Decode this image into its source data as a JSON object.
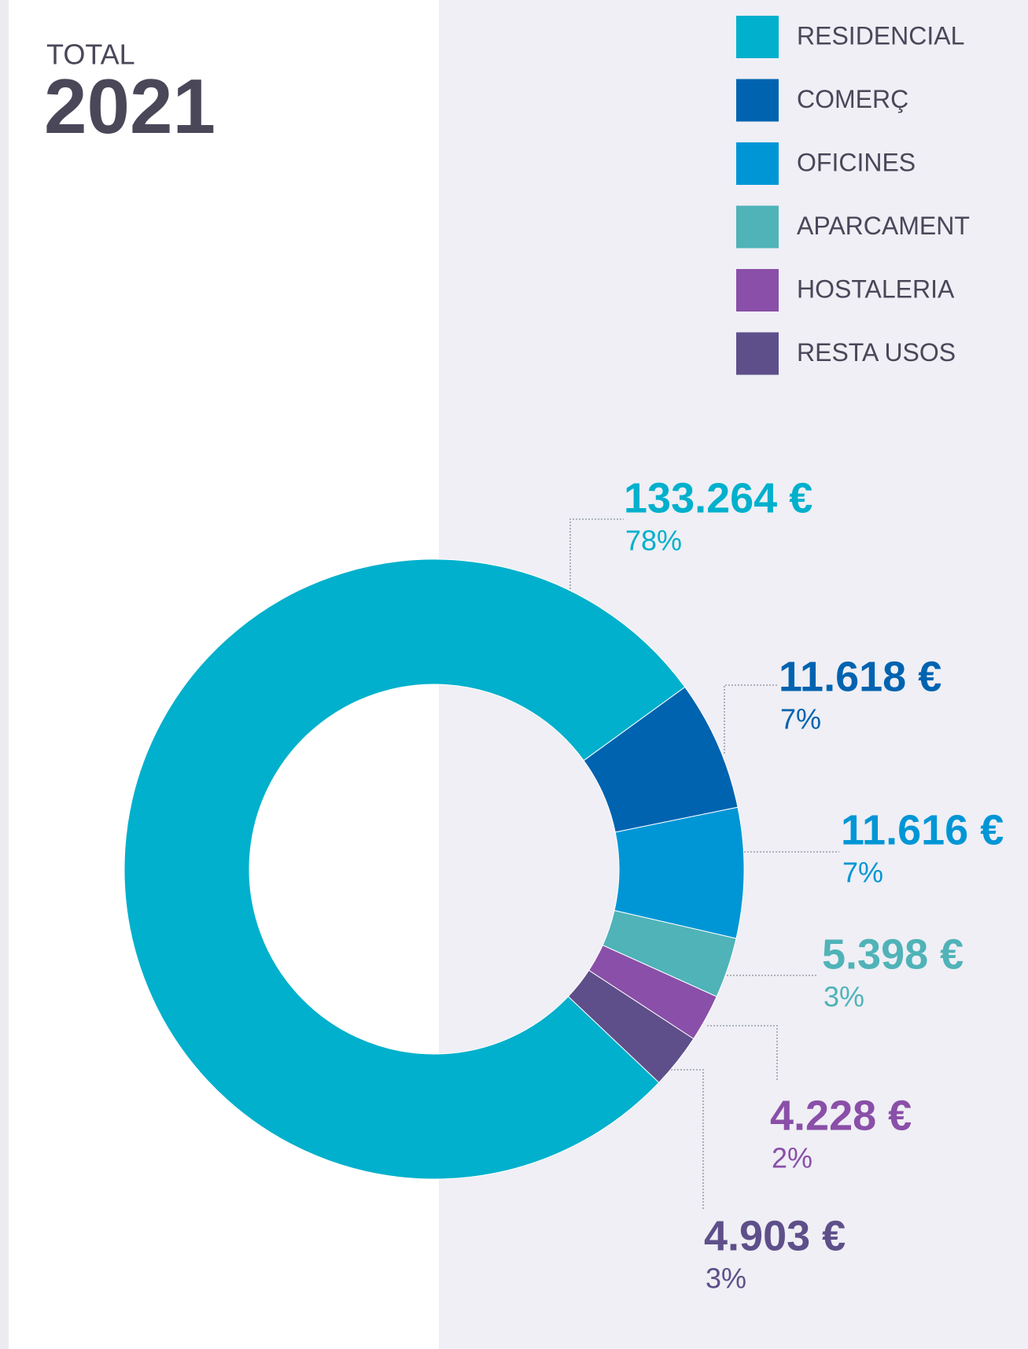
{
  "chart_data": {
    "type": "donut",
    "title": "TOTAL",
    "subtitle": "2021",
    "categories": [
      "RESIDENCIAL",
      "COMERÇ",
      "OFICINES",
      "APARCAMENT",
      "HOSTALERIA",
      "RESTA USOS"
    ],
    "values": [
      133264,
      11618,
      11616,
      5398,
      4228,
      4903
    ],
    "value_labels": [
      "133.264 €",
      "11.618 €",
      "11.616 €",
      "5.398 €",
      "4.228 €",
      "4.903 €"
    ],
    "percentages": [
      78,
      7,
      7,
      3,
      2,
      3
    ],
    "percentage_labels": [
      "78%",
      "7%",
      "7%",
      "3%",
      "2%",
      "3%"
    ],
    "colors": [
      "#00b0cc",
      "#0063b0",
      "#0096d6",
      "#4fb3b8",
      "#8a4fa8",
      "#5e4f8a"
    ],
    "legend": "top-right"
  }
}
